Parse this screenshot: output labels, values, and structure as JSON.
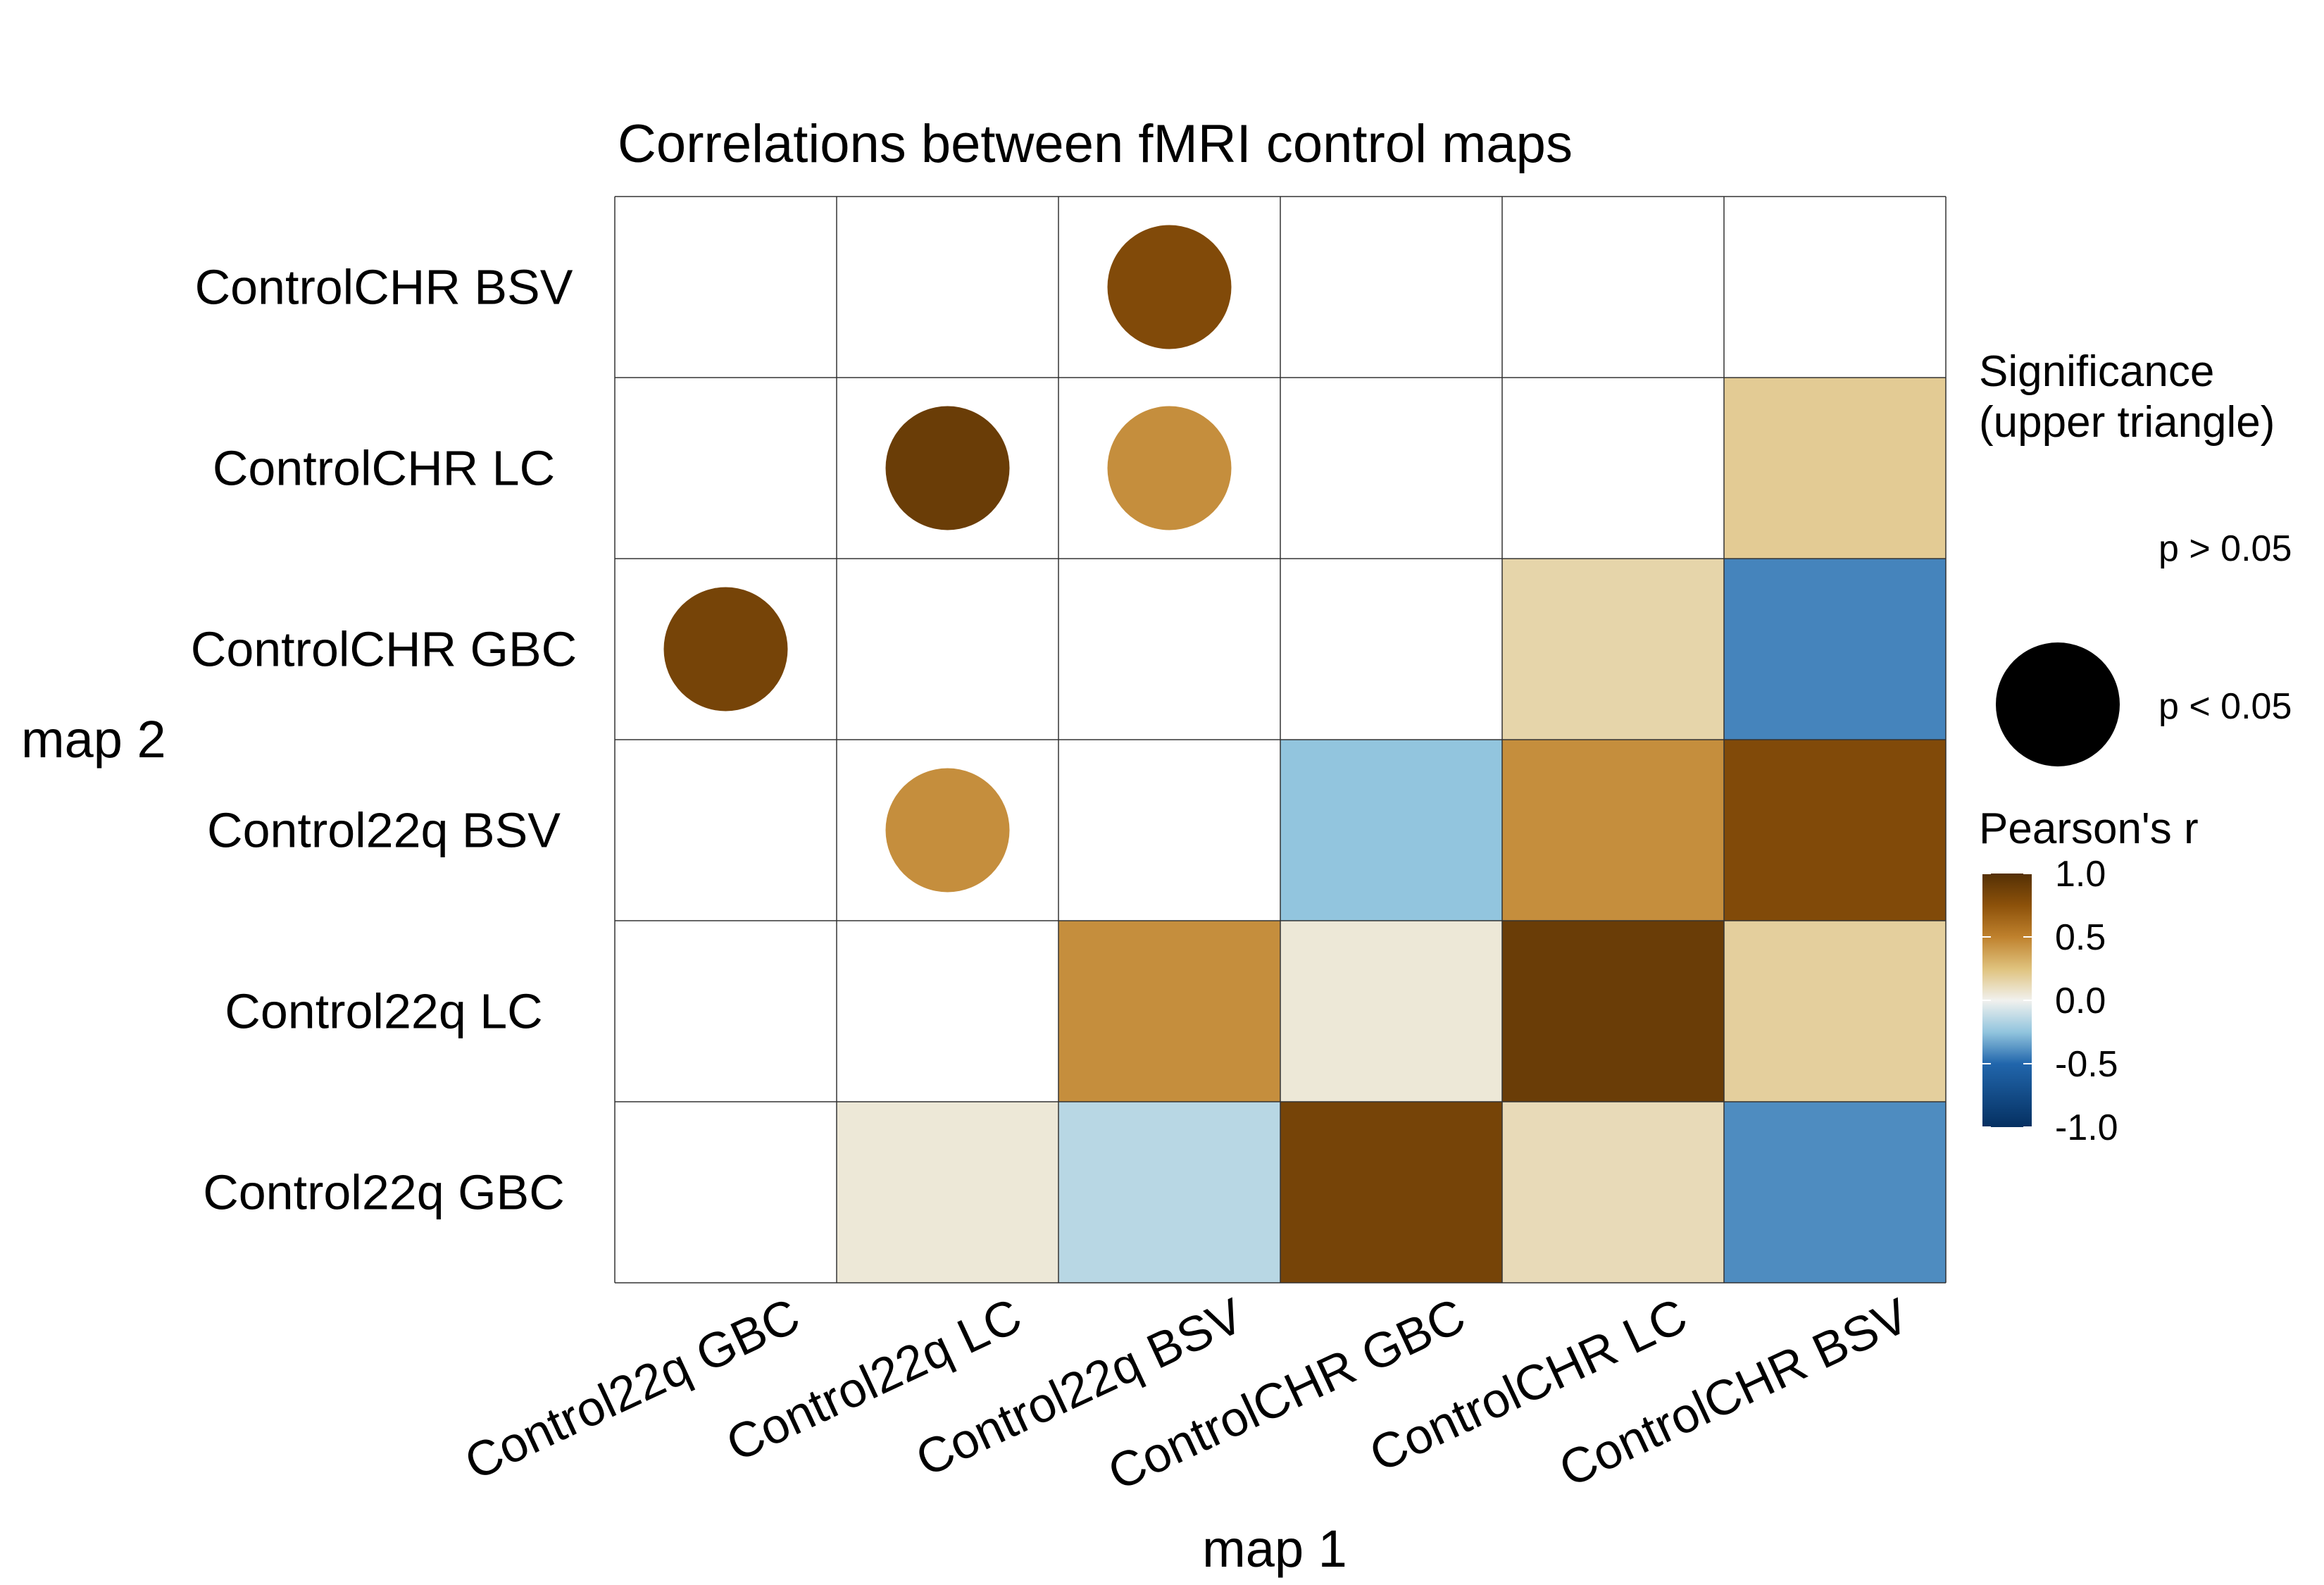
{
  "chart_data": {
    "type": "heatmap",
    "title": "Correlations between fMRI control maps",
    "xlabel": "map 1",
    "ylabel": "map 2",
    "x_categories": [
      "Control22q GBC",
      "Control22q LC",
      "Control22q BSV",
      "ControlCHR GBC",
      "ControlCHR LC",
      "ControlCHR BSV"
    ],
    "y_categories": [
      "Control22q GBC",
      "Control22q LC",
      "Control22q BSV",
      "ControlCHR GBC",
      "ControlCHR LC",
      "ControlCHR BSV"
    ],
    "cells": [
      {
        "x": "Control22q LC",
        "y": "Control22q GBC",
        "r": 0.05
      },
      {
        "x": "Control22q BSV",
        "y": "Control22q GBC",
        "r": -0.15
      },
      {
        "x": "ControlCHR GBC",
        "y": "Control22q GBC",
        "r": 0.85
      },
      {
        "x": "ControlCHR LC",
        "y": "Control22q GBC",
        "r": 0.12
      },
      {
        "x": "ControlCHR BSV",
        "y": "Control22q GBC",
        "r": -0.4
      },
      {
        "x": "Control22q BSV",
        "y": "Control22q LC",
        "r": 0.45
      },
      {
        "x": "ControlCHR GBC",
        "y": "Control22q LC",
        "r": 0.05
      },
      {
        "x": "ControlCHR LC",
        "y": "Control22q LC",
        "r": 0.9
      },
      {
        "x": "ControlCHR BSV",
        "y": "Control22q LC",
        "r": 0.18
      },
      {
        "x": "ControlCHR GBC",
        "y": "Control22q BSV",
        "r": -0.25
      },
      {
        "x": "ControlCHR LC",
        "y": "Control22q BSV",
        "r": 0.45
      },
      {
        "x": "ControlCHR BSV",
        "y": "Control22q BSV",
        "r": 0.8
      },
      {
        "x": "ControlCHR LC",
        "y": "ControlCHR GBC",
        "r": 0.15
      },
      {
        "x": "ControlCHR BSV",
        "y": "ControlCHR GBC",
        "r": -0.42
      },
      {
        "x": "ControlCHR BSV",
        "y": "ControlCHR LC",
        "r": 0.2
      }
    ],
    "significance_points": [
      {
        "x": "Control22q GBC",
        "y": "ControlCHR GBC",
        "r": 0.85,
        "significant": true
      },
      {
        "x": "Control22q LC",
        "y": "ControlCHR LC",
        "r": 0.9,
        "significant": true
      },
      {
        "x": "Control22q LC",
        "y": "Control22q BSV",
        "r": 0.45,
        "significant": true
      },
      {
        "x": "Control22q BSV",
        "y": "ControlCHR LC",
        "r": 0.45,
        "significant": true
      },
      {
        "x": "Control22q BSV",
        "y": "ControlCHR BSV",
        "r": 0.8,
        "significant": true
      }
    ],
    "color_scale": {
      "name": "Pearson's r",
      "range": [
        -1,
        1
      ],
      "ticks": [
        "1.0",
        "0.5",
        "0.0",
        "-0.5",
        "-1.0"
      ],
      "stops": [
        {
          "v": -1.0,
          "color": "#053061"
        },
        {
          "v": -0.5,
          "color": "#2166ac"
        },
        {
          "v": -0.25,
          "color": "#92c5de"
        },
        {
          "v": 0.0,
          "color": "#f1f1ee"
        },
        {
          "v": 0.25,
          "color": "#dfc27d"
        },
        {
          "v": 0.5,
          "color": "#bf812d"
        },
        {
          "v": 0.75,
          "color": "#8c510a"
        },
        {
          "v": 1.0,
          "color": "#543005"
        }
      ]
    },
    "significance_legend": {
      "title_line1": "Significance",
      "title_line2": "(upper triangle)",
      "items": [
        {
          "label": "p > 0.05",
          "shape": "none"
        },
        {
          "label": "p < 0.05",
          "shape": "circle"
        }
      ]
    },
    "legend_position": "right",
    "grid": true
  }
}
